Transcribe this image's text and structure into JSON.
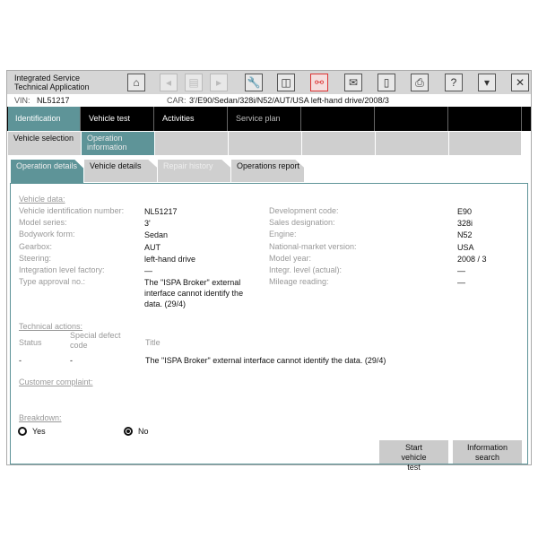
{
  "app": {
    "title_line1": "Integrated Service",
    "title_line2": "Technical Application"
  },
  "toolbar": [
    {
      "icon": "home-icon",
      "glyph": "⌂"
    },
    {
      "icon": "back-icon",
      "glyph": "◂",
      "disabled": true
    },
    {
      "icon": "pages-icon",
      "glyph": "▤",
      "disabled": true
    },
    {
      "icon": "forward-icon",
      "glyph": "▸",
      "disabled": true
    },
    {
      "icon": "wrench-icon",
      "glyph": "🔧"
    },
    {
      "icon": "split-view-icon",
      "glyph": "◫"
    },
    {
      "icon": "connection-icon",
      "glyph": "⚯",
      "active": true
    },
    {
      "icon": "mail-icon",
      "glyph": "✉"
    },
    {
      "icon": "battery-icon",
      "glyph": "▯"
    },
    {
      "icon": "print-icon",
      "glyph": "⎙"
    },
    {
      "icon": "help-icon",
      "glyph": "?"
    },
    {
      "icon": "minimize-icon",
      "glyph": "▾"
    },
    {
      "icon": "close-icon",
      "glyph": "✕"
    }
  ],
  "vin": {
    "label": "VIN:",
    "value": "NL51217"
  },
  "car": {
    "label": "CAR:",
    "value": "3'/E90/Sedan/328i/N52/AUT/USA left-hand drive/2008/3"
  },
  "nav": [
    "Identification",
    "Vehicle test",
    "Activities",
    "Service plan",
    "",
    "",
    ""
  ],
  "subnav": [
    "Vehicle selection",
    "Operation information",
    "",
    "",
    "",
    "",
    ""
  ],
  "tabs": [
    "Operation details",
    "Vehicle details",
    "Repair history",
    "Operations report"
  ],
  "vehicle_data": {
    "heading": "Vehicle data:",
    "left": [
      [
        "Vehicle identification number:",
        "NL51217"
      ],
      [
        "Model series:",
        "3'"
      ],
      [
        "Bodywork form:",
        "Sedan"
      ],
      [
        "Gearbox:",
        "AUT"
      ],
      [
        "Steering:",
        "left-hand drive"
      ],
      [
        "Integration level factory:",
        "—"
      ],
      [
        "Type approval no.:",
        "The \"ISPA Broker\" external interface cannot identify the data. (29/4)"
      ]
    ],
    "right": [
      [
        "Development code:",
        "E90"
      ],
      [
        "Sales designation:",
        "328i"
      ],
      [
        "Engine:",
        "N52"
      ],
      [
        "National-market version:",
        "USA"
      ],
      [
        "Model year:",
        "2008 / 3"
      ],
      [
        "Integr. level (actual):",
        "—"
      ],
      [
        "Mileage reading:",
        "—"
      ]
    ]
  },
  "technical_actions": {
    "heading": "Technical actions:",
    "columns": [
      "Status",
      "Special defect code",
      "Title"
    ],
    "rows": [
      [
        "-",
        "-",
        "The \"ISPA Broker\" external interface cannot identify the data. (29/4)"
      ]
    ]
  },
  "customer_complaint": {
    "heading": "Customer complaint:"
  },
  "breakdown": {
    "heading": "Breakdown:",
    "options": [
      "Yes",
      "No"
    ],
    "selected": "No"
  },
  "buttons": {
    "start_vehicle_test": "Start vehicle test",
    "information_search": "Information search"
  }
}
